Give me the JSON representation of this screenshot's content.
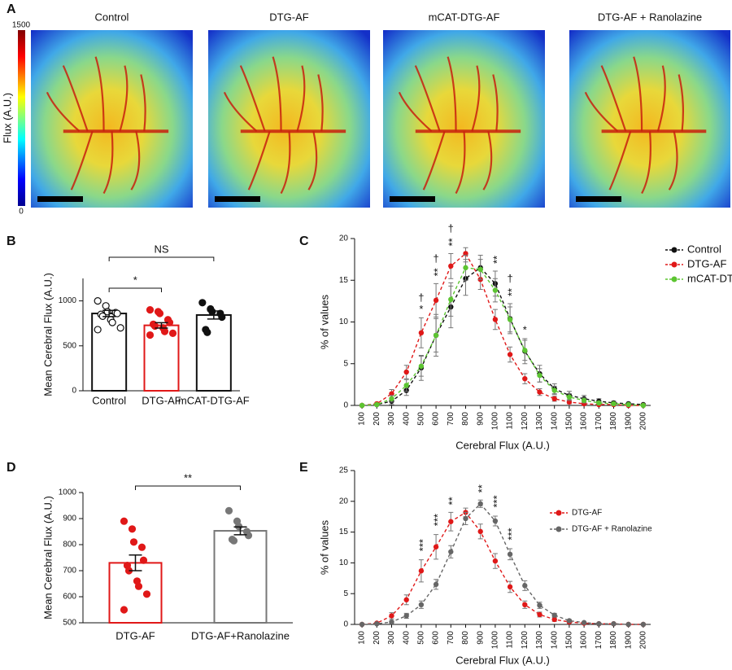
{
  "chart_data": [
    {
      "panel": "A",
      "type": "image",
      "titles": [
        "Control",
        "DTG-AF",
        "mCAT-DTG-AF",
        "DTG-AF + Ranolazine"
      ],
      "colorbar": {
        "label": "Flux (A.U.)",
        "lim": [
          0,
          1500
        ],
        "ticks": [
          0,
          1500
        ]
      }
    },
    {
      "panel": "B",
      "type": "bar",
      "ylabel": "Mean Cerebral Flux (A.U.)",
      "categories": [
        "Control",
        "DTG-AF",
        "mCAT-DTG-AF"
      ],
      "values": [
        860,
        728,
        843
      ],
      "errors": [
        35,
        30,
        45
      ],
      "colors": [
        "#111111",
        "#e01818",
        "#111111"
      ],
      "point_fill": [
        "#ffffff",
        "#e01818",
        "#111111"
      ],
      "points": [
        [
          1000,
          945,
          880,
          870,
          860,
          850,
          830,
          790,
          760,
          700,
          680
        ],
        [
          900,
          880,
          860,
          790,
          760,
          740,
          720,
          700,
          660,
          640,
          620
        ],
        [
          980,
          910,
          880,
          860,
          820,
          680,
          650
        ]
      ],
      "ylim": [
        0,
        1250
      ],
      "yticks": [
        0,
        500,
        1000
      ],
      "comparisons": [
        {
          "between": [
            "Control",
            "DTG-AF"
          ],
          "label": "*"
        },
        {
          "between": [
            "Control",
            "mCAT-DTG-AF"
          ],
          "label": "NS"
        }
      ]
    },
    {
      "panel": "C",
      "type": "line",
      "xlabel": "Cerebral Flux (A.U.)",
      "ylabel": "% of values",
      "x": [
        100,
        200,
        300,
        400,
        500,
        600,
        700,
        800,
        900,
        1000,
        1100,
        1200,
        1300,
        1400,
        1500,
        1600,
        1700,
        1800,
        1900,
        2000
      ],
      "xlim": [
        50,
        2050
      ],
      "xticks": [
        100,
        200,
        300,
        400,
        500,
        600,
        700,
        800,
        900,
        1000,
        1100,
        1200,
        1300,
        1400,
        1500,
        1600,
        1700,
        1800,
        1900,
        2000
      ],
      "ylim": [
        0,
        20
      ],
      "yticks": [
        0,
        5,
        10,
        15,
        20
      ],
      "series": [
        {
          "name": "Control",
          "color": "#111111",
          "values": [
            0,
            0.1,
            0.5,
            1.8,
            4.5,
            8.4,
            11.8,
            15.2,
            16.5,
            14.6,
            10.4,
            6.5,
            3.8,
            2.0,
            1.2,
            0.8,
            0.5,
            0.3,
            0.2,
            0.1
          ],
          "errors": [
            0,
            0.1,
            0.4,
            0.6,
            1.5,
            2.5,
            2.5,
            2.0,
            1.5,
            1.5,
            1.8,
            1.5,
            1.0,
            0.6,
            0.5,
            0.4,
            0.3,
            0.2,
            0.1,
            0.1
          ]
        },
        {
          "name": "DTG-AF",
          "color": "#e01818",
          "values": [
            0,
            0.2,
            1.4,
            4.0,
            8.7,
            12.6,
            16.7,
            18.2,
            15.1,
            10.3,
            6.1,
            3.2,
            1.6,
            0.8,
            0.4,
            0.2,
            0.1,
            0.1,
            0,
            0
          ],
          "errors": [
            0,
            0.1,
            0.5,
            0.8,
            1.8,
            2.0,
            1.5,
            0.7,
            1.2,
            1.2,
            0.9,
            0.6,
            0.4,
            0.3,
            0.2,
            0.1,
            0.1,
            0.1,
            0,
            0
          ]
        },
        {
          "name": "mCAT-DTG-AF",
          "color": "#5cc531",
          "values": [
            0,
            0.1,
            0.8,
            2.4,
            4.7,
            8.4,
            12.7,
            16.5,
            16.3,
            13.8,
            10.3,
            6.6,
            3.6,
            1.8,
            1.0,
            0.6,
            0.3,
            0.2,
            0.1,
            0
          ],
          "errors": [
            0,
            0.1,
            0.4,
            0.7,
            1.2,
            2.0,
            2.0,
            1.5,
            1.2,
            1.4,
            1.5,
            1.2,
            0.8,
            0.5,
            0.4,
            0.3,
            0.2,
            0.1,
            0.1,
            0
          ]
        }
      ],
      "annotations": [
        {
          "x": 500,
          "labels": [
            "*",
            "†"
          ]
        },
        {
          "x": 600,
          "labels": [
            "**",
            "†"
          ]
        },
        {
          "x": 700,
          "labels": [
            "**",
            "†"
          ]
        },
        {
          "x": 1000,
          "labels": [
            "**"
          ]
        },
        {
          "x": 1100,
          "labels": [
            "**",
            "†"
          ]
        },
        {
          "x": 1200,
          "labels": [
            "*"
          ]
        }
      ]
    },
    {
      "panel": "D",
      "type": "bar",
      "ylabel": "Mean Cerebral Flux (A.U.)",
      "categories": [
        "DTG-AF",
        "DTG-AF+Ranolazine"
      ],
      "values": [
        730,
        853
      ],
      "errors": [
        30,
        15
      ],
      "colors": [
        "#e01818",
        "#777777"
      ],
      "point_fill": [
        "#e01818",
        "#777777"
      ],
      "points": [
        [
          890,
          860,
          810,
          790,
          740,
          720,
          700,
          660,
          640,
          610,
          550
        ],
        [
          930,
          890,
          870,
          850,
          835,
          820,
          815
        ]
      ],
      "ylim": [
        500,
        1000
      ],
      "yticks": [
        500,
        600,
        700,
        800,
        900,
        1000
      ],
      "comparisons": [
        {
          "between": [
            "DTG-AF",
            "DTG-AF+Ranolazine"
          ],
          "label": "**"
        }
      ]
    },
    {
      "panel": "E",
      "type": "line",
      "xlabel": "Cerebral Flux (A.U.)",
      "ylabel": "% of values",
      "x": [
        100,
        200,
        300,
        400,
        500,
        600,
        700,
        800,
        900,
        1000,
        1100,
        1200,
        1300,
        1400,
        1500,
        1600,
        1700,
        1800,
        1900,
        2000
      ],
      "xlim": [
        50,
        2050
      ],
      "xticks": [
        100,
        200,
        300,
        400,
        500,
        600,
        700,
        800,
        900,
        1000,
        1100,
        1200,
        1300,
        1400,
        1500,
        1600,
        1700,
        1800,
        1900,
        2000
      ],
      "ylim": [
        0,
        25
      ],
      "yticks": [
        0,
        5,
        10,
        15,
        20,
        25
      ],
      "series": [
        {
          "name": "DTG-AF",
          "color": "#e01818",
          "values": [
            0,
            0.2,
            1.4,
            4.0,
            8.7,
            12.6,
            16.7,
            18.2,
            15.1,
            10.3,
            6.1,
            3.2,
            1.6,
            0.8,
            0.4,
            0.2,
            0.1,
            0.1,
            0,
            0
          ],
          "errors": [
            0,
            0.1,
            0.5,
            0.8,
            1.8,
            2.0,
            1.5,
            0.7,
            1.2,
            1.2,
            0.9,
            0.6,
            0.4,
            0.3,
            0.2,
            0.1,
            0.1,
            0.1,
            0,
            0
          ]
        },
        {
          "name": "DTG-AF + Ranolazine",
          "color": "#666666",
          "values": [
            0,
            0.1,
            0.4,
            1.4,
            3.2,
            6.5,
            11.8,
            17.2,
            19.6,
            16.8,
            11.4,
            6.3,
            3.1,
            1.5,
            0.6,
            0.3,
            0.1,
            0.1,
            0,
            0
          ],
          "errors": [
            0,
            0.1,
            0.2,
            0.4,
            0.6,
            0.8,
            1.0,
            1.0,
            0.6,
            0.8,
            0.9,
            0.8,
            0.5,
            0.3,
            0.2,
            0.1,
            0.1,
            0.1,
            0,
            0
          ]
        }
      ],
      "annotations": [
        {
          "x": 500,
          "labels": [
            "***"
          ]
        },
        {
          "x": 600,
          "labels": [
            "***"
          ]
        },
        {
          "x": 700,
          "labels": [
            "**"
          ]
        },
        {
          "x": 900,
          "labels": [
            "**"
          ]
        },
        {
          "x": 1000,
          "labels": [
            "***"
          ]
        },
        {
          "x": 1100,
          "labels": [
            "***"
          ]
        }
      ]
    }
  ]
}
